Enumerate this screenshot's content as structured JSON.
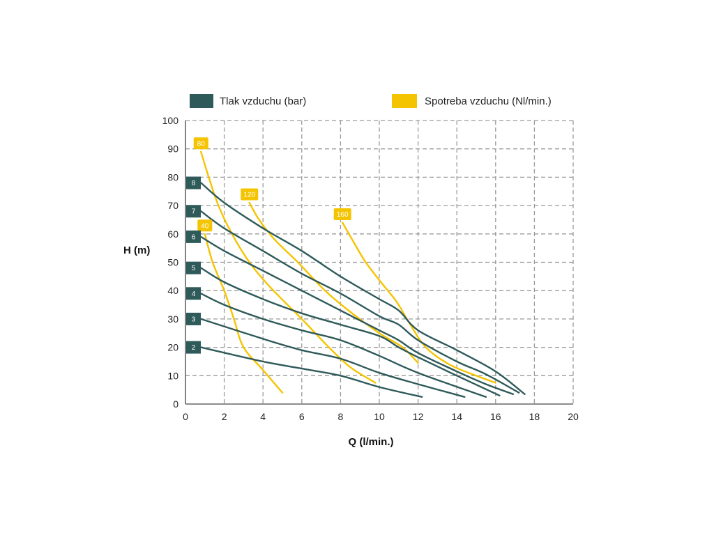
{
  "chart_data": {
    "type": "line",
    "xlabel": "Q (l/min.)",
    "ylabel": "H (m)",
    "xlim": [
      0,
      20
    ],
    "ylim": [
      0,
      100
    ],
    "xticks": [
      0,
      2,
      4,
      6,
      8,
      10,
      12,
      14,
      16,
      18,
      20
    ],
    "yticks": [
      0,
      10,
      20,
      30,
      40,
      50,
      60,
      70,
      80,
      90,
      100
    ],
    "grid": true,
    "legend": {
      "placement": "top",
      "entries": [
        {
          "label": "Tlak vzduchu (bar)",
          "color": "#2f5a5a"
        },
        {
          "label": "Spotreba vzduchu (Nl/min.)",
          "color": "#f5c400"
        }
      ]
    },
    "pressure_curves": [
      {
        "name": "2",
        "color": "#2f5a5a",
        "points": [
          [
            0.8,
            20
          ],
          [
            4,
            15
          ],
          [
            6,
            12.5
          ],
          [
            8,
            10
          ],
          [
            10,
            6
          ],
          [
            12.2,
            2.5
          ]
        ]
      },
      {
        "name": "3",
        "color": "#2f5a5a",
        "points": [
          [
            0.8,
            30
          ],
          [
            4,
            23
          ],
          [
            6,
            19
          ],
          [
            8,
            16
          ],
          [
            10,
            11
          ],
          [
            12,
            7
          ],
          [
            14.4,
            2.5
          ]
        ]
      },
      {
        "name": "4",
        "color": "#2f5a5a",
        "points": [
          [
            0.8,
            39
          ],
          [
            2,
            35
          ],
          [
            4,
            30
          ],
          [
            6,
            26
          ],
          [
            8,
            22.5
          ],
          [
            10,
            17
          ],
          [
            12,
            11
          ],
          [
            15.5,
            2.5
          ]
        ]
      },
      {
        "name": "5",
        "color": "#2f5a5a",
        "points": [
          [
            0.8,
            48
          ],
          [
            2,
            43
          ],
          [
            4,
            37
          ],
          [
            6,
            32
          ],
          [
            8,
            28
          ],
          [
            10,
            24
          ],
          [
            11,
            20
          ],
          [
            12,
            16.5
          ],
          [
            14,
            10
          ],
          [
            16.2,
            3
          ]
        ]
      },
      {
        "name": "6",
        "color": "#2f5a5a",
        "points": [
          [
            0.8,
            59
          ],
          [
            2,
            54
          ],
          [
            4,
            47
          ],
          [
            6,
            40
          ],
          [
            8,
            33
          ],
          [
            10,
            26
          ],
          [
            11,
            22.5
          ],
          [
            12,
            18
          ],
          [
            14,
            11.5
          ],
          [
            15.5,
            7
          ],
          [
            16.9,
            3.5
          ]
        ]
      },
      {
        "name": "7",
        "color": "#2f5a5a",
        "points": [
          [
            0.8,
            68
          ],
          [
            2,
            62
          ],
          [
            4,
            54
          ],
          [
            6,
            46
          ],
          [
            8,
            39
          ],
          [
            10,
            31
          ],
          [
            11,
            28
          ],
          [
            12,
            22.5
          ],
          [
            14,
            15
          ],
          [
            15.5,
            10.5
          ],
          [
            17.2,
            4
          ]
        ]
      },
      {
        "name": "8",
        "color": "#2f5a5a",
        "points": [
          [
            0.8,
            78
          ],
          [
            2,
            71
          ],
          [
            4,
            62
          ],
          [
            6,
            54
          ],
          [
            8,
            45
          ],
          [
            10,
            37
          ],
          [
            11,
            33
          ],
          [
            12,
            26
          ],
          [
            14,
            19
          ],
          [
            16,
            11.5
          ],
          [
            17.5,
            3.5
          ]
        ]
      }
    ],
    "consumption_curves": [
      {
        "name": "40",
        "color": "#f5c400",
        "points": [
          [
            1,
            60
          ],
          [
            1.4,
            50
          ],
          [
            2,
            40
          ],
          [
            2.5,
            30
          ],
          [
            3,
            20
          ],
          [
            4,
            12
          ],
          [
            5,
            4
          ]
        ]
      },
      {
        "name": "80",
        "color": "#f5c400",
        "points": [
          [
            0.8,
            89
          ],
          [
            1.2,
            80
          ],
          [
            1.7,
            70
          ],
          [
            2.4,
            60
          ],
          [
            3.3,
            50
          ],
          [
            4.4,
            41
          ],
          [
            6,
            30
          ],
          [
            7.4,
            20
          ],
          [
            8.5,
            13
          ],
          [
            9.8,
            7.5
          ]
        ]
      },
      {
        "name": "120",
        "color": "#f5c400",
        "points": [
          [
            3.3,
            71
          ],
          [
            3.8,
            65
          ],
          [
            4.6,
            58
          ],
          [
            5.8,
            50
          ],
          [
            7.2,
            40
          ],
          [
            8.6,
            32
          ],
          [
            10,
            25
          ],
          [
            11.2,
            20
          ],
          [
            12,
            14.5
          ]
        ]
      },
      {
        "name": "160",
        "color": "#f5c400",
        "points": [
          [
            8.1,
            64
          ],
          [
            8.6,
            58
          ],
          [
            9.3,
            50
          ],
          [
            10.2,
            42
          ],
          [
            10.9,
            36
          ],
          [
            11.6,
            28
          ],
          [
            12.4,
            20
          ],
          [
            13.6,
            14
          ],
          [
            15,
            10
          ],
          [
            16,
            7.5
          ]
        ]
      }
    ]
  }
}
